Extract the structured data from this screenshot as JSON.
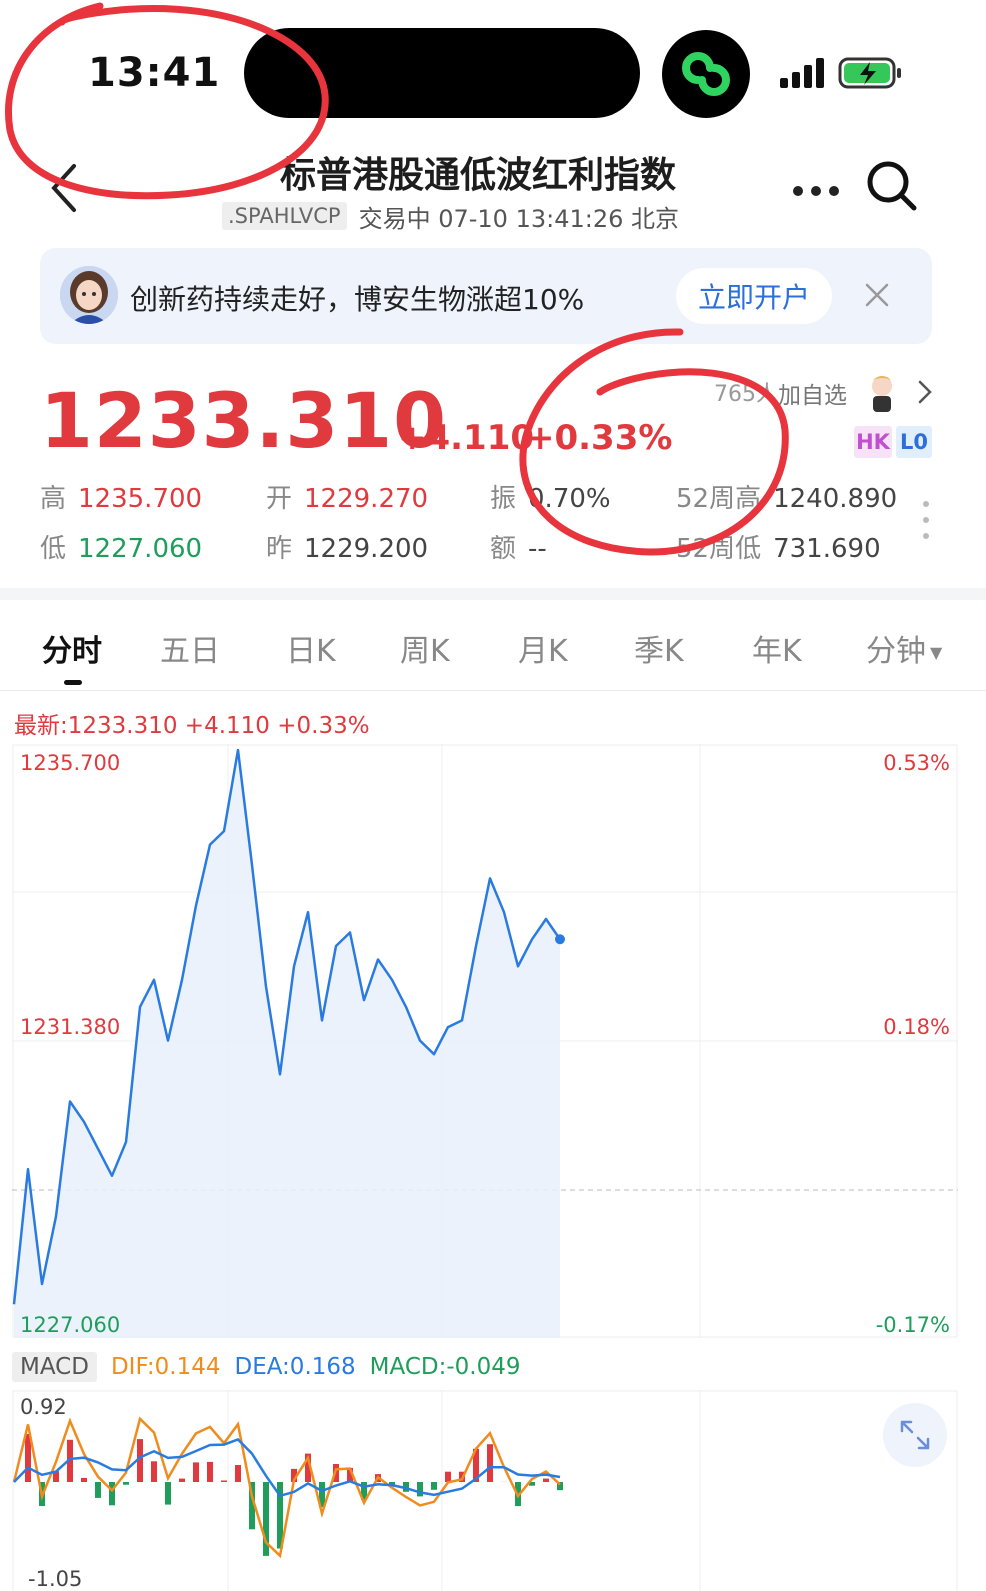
{
  "status_bar": {
    "time": "13:41"
  },
  "header": {
    "title": "标普港股通低波红利指数",
    "code": ".SPAHLVCP",
    "trading_status": "交易中 07-10 13:41:26 北京"
  },
  "banner": {
    "text": "创新药持续走好，博安生物涨超10%",
    "button": "立即开户"
  },
  "quote": {
    "price": "1233.310",
    "change": "+4.110",
    "change_pct": "+0.33%",
    "fav_count": "765人",
    "fav_label": "加自选",
    "tag_hk": "HK",
    "tag_lo": "L0"
  },
  "stats": {
    "high": {
      "label": "高",
      "value": "1235.700"
    },
    "open": {
      "label": "开",
      "value": "1229.270"
    },
    "amplitude": {
      "label": "振",
      "value": "0.70%"
    },
    "week52_high": {
      "label": "52周高",
      "value": "1240.890"
    },
    "low": {
      "label": "低",
      "value": "1227.060"
    },
    "prev_close": {
      "label": "昨",
      "value": "1229.200"
    },
    "amount": {
      "label": "额",
      "value": "--"
    },
    "week52_low": {
      "label": "52周低",
      "value": "731.690"
    }
  },
  "tabs": [
    "分时",
    "五日",
    "日K",
    "周K",
    "月K",
    "季K",
    "年K",
    "分钟"
  ],
  "latest_line": "最新:1233.310  +4.110  +0.33%",
  "chart_data": {
    "type": "line",
    "y_axis_left": [
      "1235.700",
      "1231.380",
      "1227.060"
    ],
    "y_axis_right": [
      "0.53%",
      "0.18%",
      "-0.17%"
    ],
    "ylim": [
      1227.06,
      1235.7
    ],
    "reference_close": 1229.2,
    "series": [
      {
        "values": [
          1227.5,
          1229.5,
          1227.8,
          1228.8,
          1230.5,
          1230.2,
          1229.8,
          1229.4,
          1229.9,
          1231.9,
          1232.3,
          1231.4,
          1232.3,
          1233.4,
          1234.3,
          1234.5,
          1235.7,
          1234.0,
          1232.2,
          1230.9,
          1232.5,
          1233.3,
          1231.7,
          1232.8,
          1233.0,
          1232.0,
          1232.6,
          1232.3,
          1231.9,
          1231.4,
          1231.2,
          1231.6,
          1231.7,
          1232.8,
          1233.8,
          1233.3,
          1232.5,
          1232.9,
          1233.2,
          1232.9
        ],
        "color": "#2a7be0"
      }
    ],
    "macd": {
      "dif": "DIF:0.144",
      "dea": "DEA:0.168",
      "macd": "MACD:-0.049",
      "y_top_label": "0.92",
      "y_bottom_label": "-1.05"
    }
  },
  "macd_tag": "MACD",
  "colors": {
    "up": "#e0393e",
    "down": "#1e9e5a",
    "line": "#2a7be0",
    "dif": "#f08c1e"
  }
}
